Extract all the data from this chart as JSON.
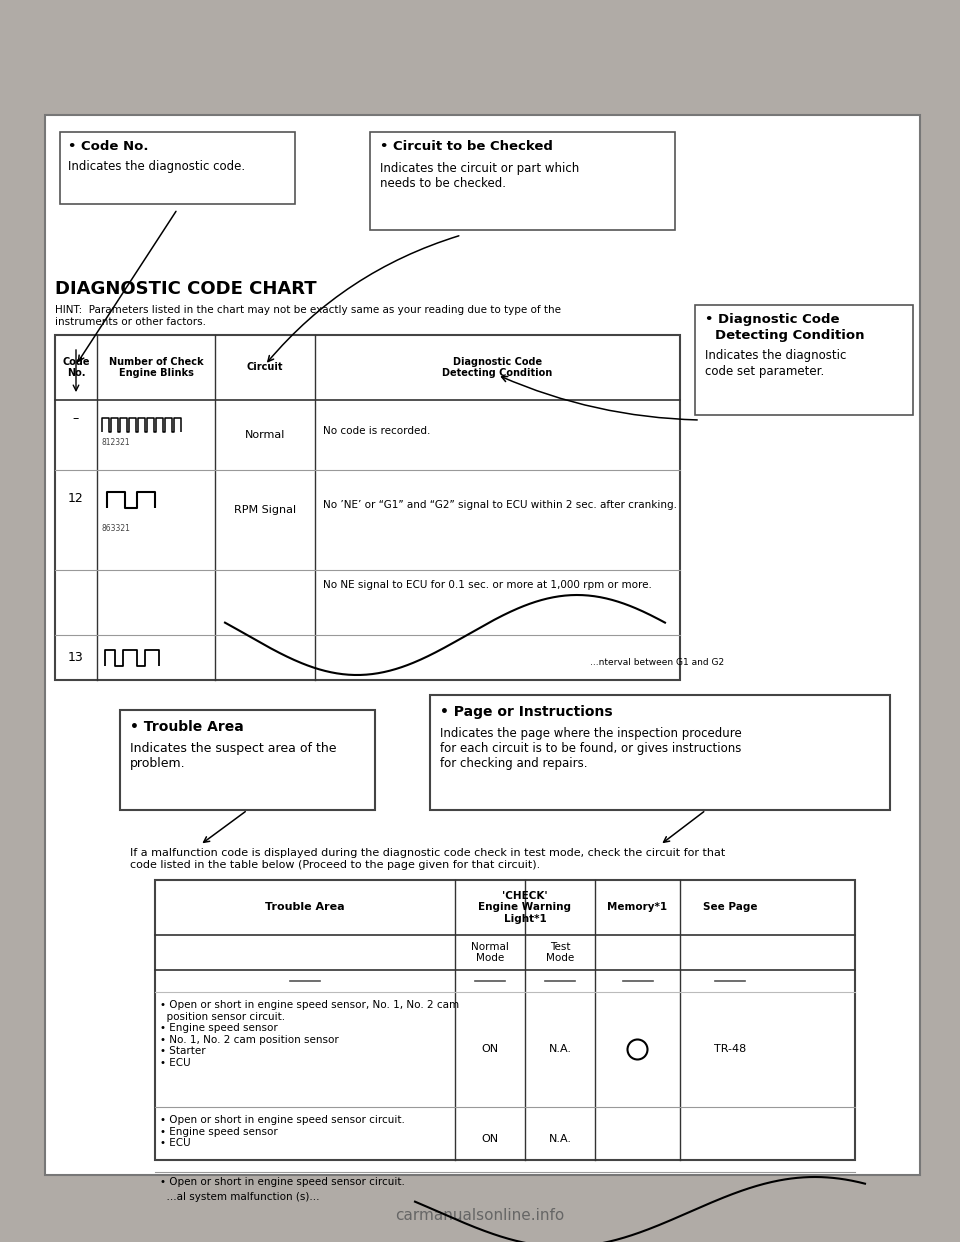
{
  "bg_color": "#b0aba6",
  "page_bg": "#ffffff",
  "title": "DIAGNOSTIC CODE CHART",
  "hint_text": "HINT:  Parameters listed in the chart may not be exactly same as your reading due to type of the\ninstruments or other factors.",
  "box1_title": "• Code No.",
  "box1_body": "Indicates the diagnostic code.",
  "box2_title": "• Circuit to be Checked",
  "box2_body": "Indicates the circuit or part which\nneeds to be checked.",
  "box3_line1": "• Diagnostic Code",
  "box3_line2": "Detecting Condition",
  "box3_line3": "Indicates the diagnostic",
  "box3_line4": "code set parameter.",
  "box4_title": "• Trouble Area",
  "box4_body": "Indicates the suspect area of the\nproblem.",
  "box5_title": "• Page or Instructions",
  "box5_body": "Indicates the page where the inspection procedure\nfor each circuit is to be found, or gives instructions\nfor checking and repairs.",
  "col_headers": [
    "Code\nNo.",
    "Number of Check\nEngine Blinks",
    "Circuit",
    "Diagnostic Code\nDetecting Condition"
  ],
  "row1_code": "–",
  "row1_circuit": "Normal",
  "row1_condition": "No code is recorded.",
  "row1_waveform_label": "812321",
  "row2_code": "12",
  "row2_circuit": "RPM Signal",
  "row2_condition": "No ’NE’ or “G1” and “G2” signal to ECU within 2 sec. after cranking.",
  "row2_waveform_label": "863321",
  "row2b_condition": "No NE signal to ECU for 0.1 sec. or more at 1,000 rpm or more.",
  "row3_code": "13",
  "row3_condition": "...nterval between G1 and G2",
  "bottom_text": "If a malfunction code is displayed during the diagnostic code check in test mode, check the circuit for that\ncode listed in the table below (Proceed to the page given for that circuit).",
  "t2_col1": "Trouble Area",
  "t2_col2": "'CHECK'\nEngine Warning\nLight*1",
  "t2_col2a": "Normal\nMode",
  "t2_col2b": "Test\nMode",
  "t2_col3": "Memory*1",
  "t2_col4": "See Page",
  "row_t1": "• Open or short in engine speed sensor, No. 1, No. 2 cam\n  position sensor circuit.\n• Engine speed sensor\n• No. 1, No. 2 cam position sensor\n• Starter\n• ECU",
  "row_t1_normal": "ON",
  "row_t1_test": "N.A.",
  "row_t1_page": "TR-48",
  "row_t2": "• Open or short in engine speed sensor circuit.\n• Engine speed sensor\n• ECU",
  "row_t2_normal": "ON",
  "row_t2_test": "N.A.",
  "row_t3a": "• Open or short in engine speed sensor circuit.",
  "row_t3b": "  ...al system malfunction (s)...",
  "watermark": "carmanualsonline.info"
}
